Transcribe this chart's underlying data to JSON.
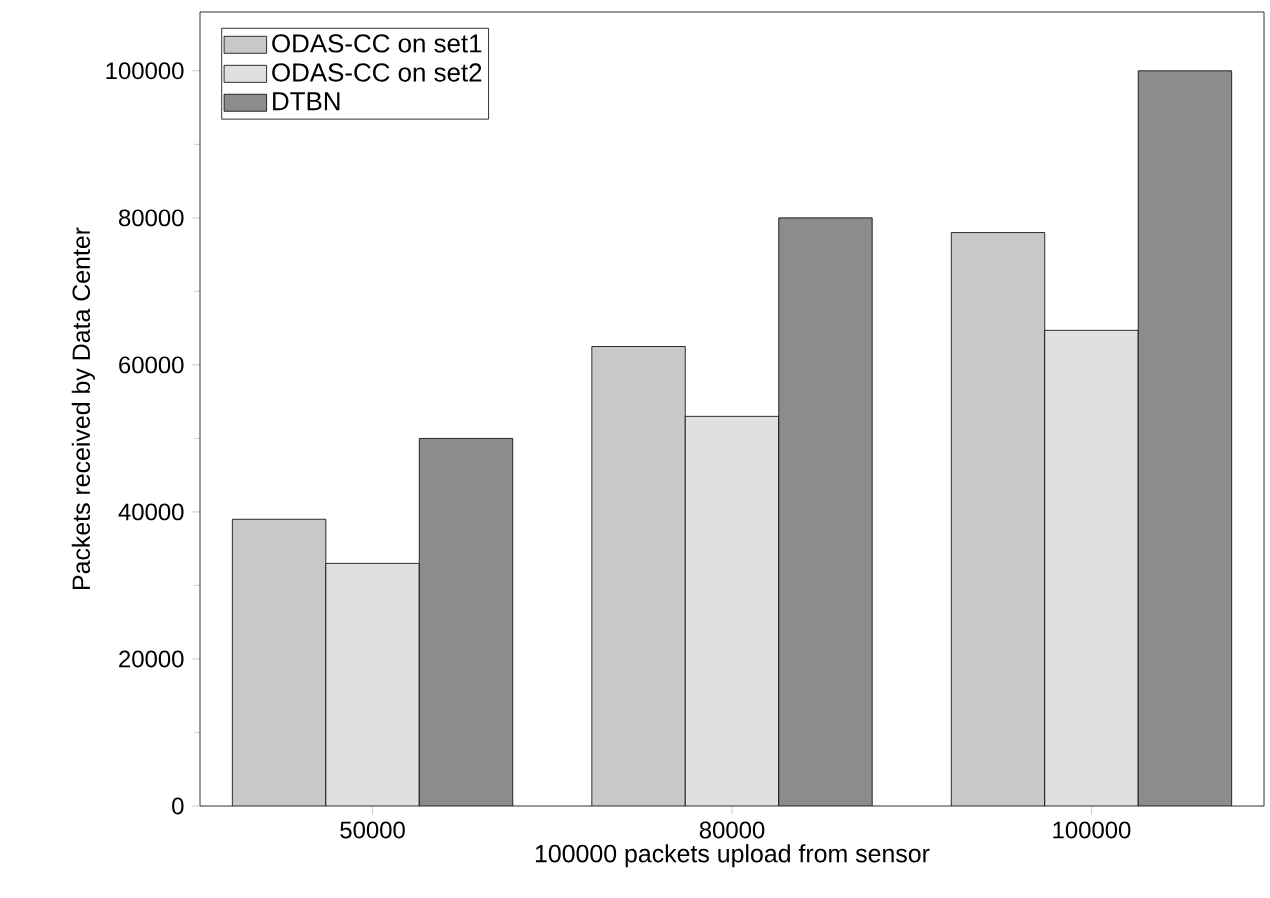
{
  "chart_data": {
    "type": "bar",
    "xlabel": "100000 packets upload from sensor",
    "ylabel": "Packets received by Data Center",
    "categories": [
      "50000",
      "80000",
      "100000"
    ],
    "series": [
      {
        "name": "ODAS-CC on set1",
        "color": "#c8c8c8",
        "values": [
          39000,
          62500,
          78000
        ]
      },
      {
        "name": "ODAS-CC on set2",
        "color": "#e0e0e0",
        "values": [
          33000,
          53000,
          64700
        ]
      },
      {
        "name": "DTBN",
        "color": "#8c8c8c",
        "values": [
          50000,
          80000,
          100000
        ]
      }
    ],
    "ylim": [
      0,
      108000
    ],
    "yticks": [
      0,
      20000,
      40000,
      60000,
      80000,
      100000
    ],
    "grid": false,
    "legend": "top left"
  }
}
